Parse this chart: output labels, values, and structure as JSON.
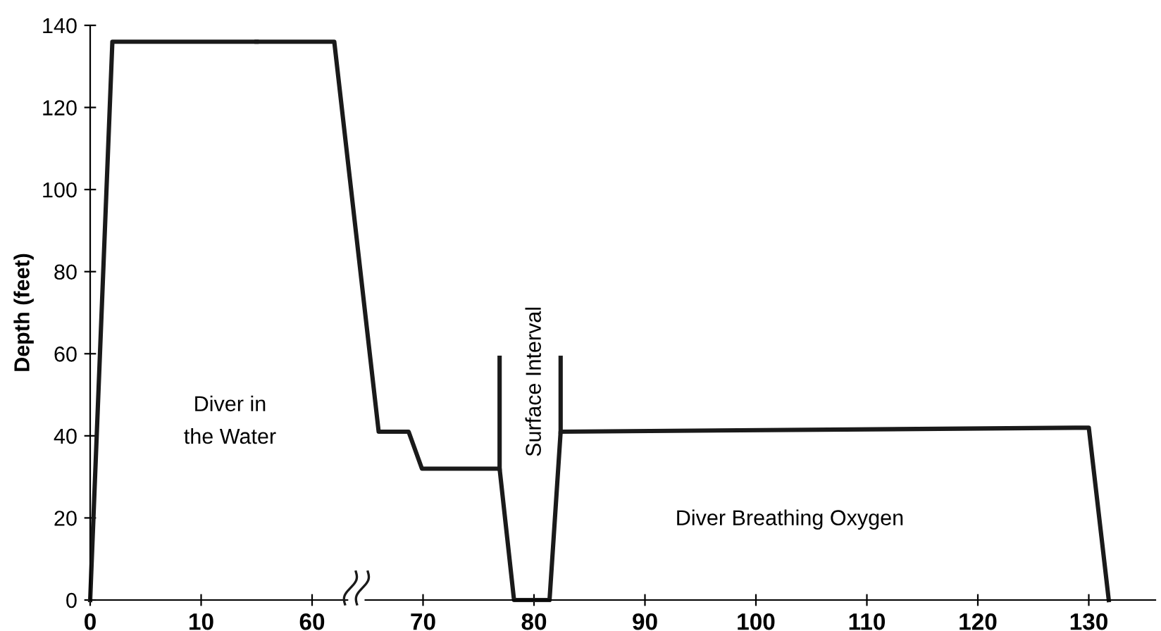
{
  "chart_data": [
    {
      "type": "line",
      "ylabel": "Depth (feet)",
      "xlim": [
        0,
        15
      ],
      "xticks": [
        0,
        10
      ],
      "ylim": [
        0,
        140
      ],
      "yticks": [
        0,
        20,
        40,
        60,
        80,
        100,
        120,
        140
      ],
      "grid": false,
      "marker": "none",
      "line_style": "solid",
      "series": [
        {
          "color": "#1a1a1a",
          "x": [
            0,
            2,
            15
          ],
          "values": [
            0,
            136,
            136
          ]
        }
      ],
      "annotations": [
        "Diver in\nthe Water"
      ]
    },
    {
      "type": "line",
      "xlim": [
        55,
        136
      ],
      "xticks": [
        60,
        70,
        80,
        90,
        100,
        110,
        120,
        130
      ],
      "ylim": [
        0,
        140
      ],
      "yticks": [
        0,
        20,
        40,
        60,
        80,
        100,
        120,
        140
      ],
      "tick_labels": "x",
      "grid": false,
      "marker": "none",
      "line_style": "solid",
      "series": [
        {
          "color": "#1a1a1a",
          "x": [
            55,
            62,
            66,
            68.7,
            69.9,
            76.9,
            78.2,
            81.4,
            82.4,
            130,
            131.8
          ],
          "values": [
            136,
            136,
            41,
            41,
            32,
            32,
            0,
            0,
            41,
            42,
            0
          ]
        },
        {
          "color": "#1a1a1a",
          "x": [
            76.9,
            76.9
          ],
          "values": [
            59,
            32
          ]
        },
        {
          "color": "#1a1a1a",
          "x": [
            82.4,
            82.4
          ],
          "values": [
            59,
            41
          ]
        }
      ],
      "annotations": [
        "Surface Interval",
        "Diver Breathing Oxygen"
      ]
    }
  ]
}
